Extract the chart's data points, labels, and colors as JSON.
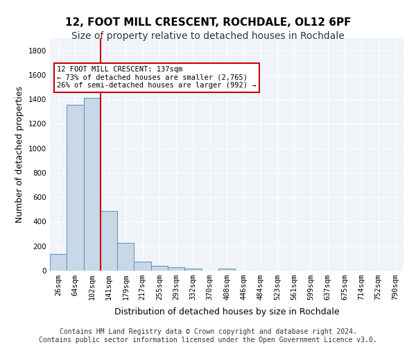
{
  "title1": "12, FOOT MILL CRESCENT, ROCHDALE, OL12 6PF",
  "title2": "Size of property relative to detached houses in Rochdale",
  "xlabel": "Distribution of detached houses by size in Rochdale",
  "ylabel": "Number of detached properties",
  "bin_labels": [
    "26sqm",
    "64sqm",
    "102sqm",
    "141sqm",
    "179sqm",
    "217sqm",
    "255sqm",
    "293sqm",
    "332sqm",
    "370sqm",
    "408sqm",
    "446sqm",
    "484sqm",
    "523sqm",
    "561sqm",
    "599sqm",
    "637sqm",
    "675sqm",
    "714sqm",
    "752sqm",
    "790sqm"
  ],
  "bar_values": [
    135,
    1355,
    1410,
    490,
    225,
    75,
    42,
    27,
    15,
    0,
    18,
    0,
    0,
    0,
    0,
    0,
    0,
    0,
    0,
    0,
    0
  ],
  "bar_color": "#c8d8e8",
  "bar_edge_color": "#6699bb",
  "vline_x": 3,
  "vline_color": "#cc0000",
  "ylim": [
    0,
    1900
  ],
  "yticks": [
    0,
    200,
    400,
    600,
    800,
    1000,
    1200,
    1400,
    1600,
    1800
  ],
  "annotation_text": "12 FOOT MILL CRESCENT: 137sqm\n← 73% of detached houses are smaller (2,765)\n26% of semi-detached houses are larger (992) →",
  "annotation_box_color": "#ffffff",
  "annotation_border_color": "#cc0000",
  "footer_text": "Contains HM Land Registry data © Crown copyright and database right 2024.\nContains public sector information licensed under the Open Government Licence v3.0.",
  "background_color": "#f0f4f8",
  "grid_color": "#ffffff",
  "title1_fontsize": 11,
  "title2_fontsize": 10,
  "xlabel_fontsize": 9,
  "ylabel_fontsize": 9,
  "tick_fontsize": 7.5,
  "footer_fontsize": 7
}
